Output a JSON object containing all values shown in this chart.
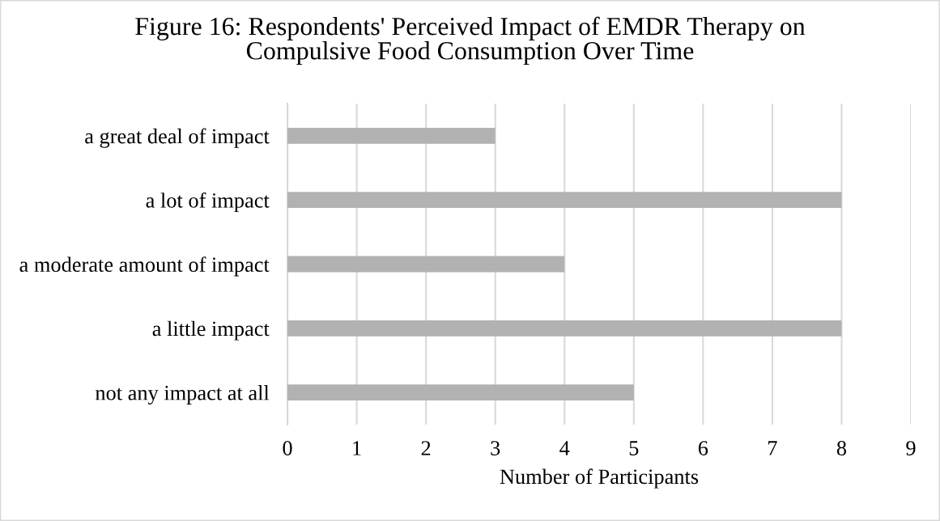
{
  "chart_data": {
    "type": "bar",
    "orientation": "horizontal",
    "title": "Figure 16: Respondents' Perceived Impact of EMDR Therapy on\nCompulsive Food Consumption Over Time",
    "xlabel": "Number of Participants",
    "categories": [
      "a great deal of impact",
      "a lot of impact",
      "a moderate amount of impact",
      "a little impact",
      "not any impact at all"
    ],
    "values": [
      3,
      8,
      4,
      8,
      5
    ],
    "color": "#b2b2b2",
    "xlim": [
      0,
      9
    ],
    "xticks": [
      0,
      1,
      2,
      3,
      4,
      5,
      6,
      7,
      8,
      9
    ],
    "grid": "x",
    "legend": false
  }
}
